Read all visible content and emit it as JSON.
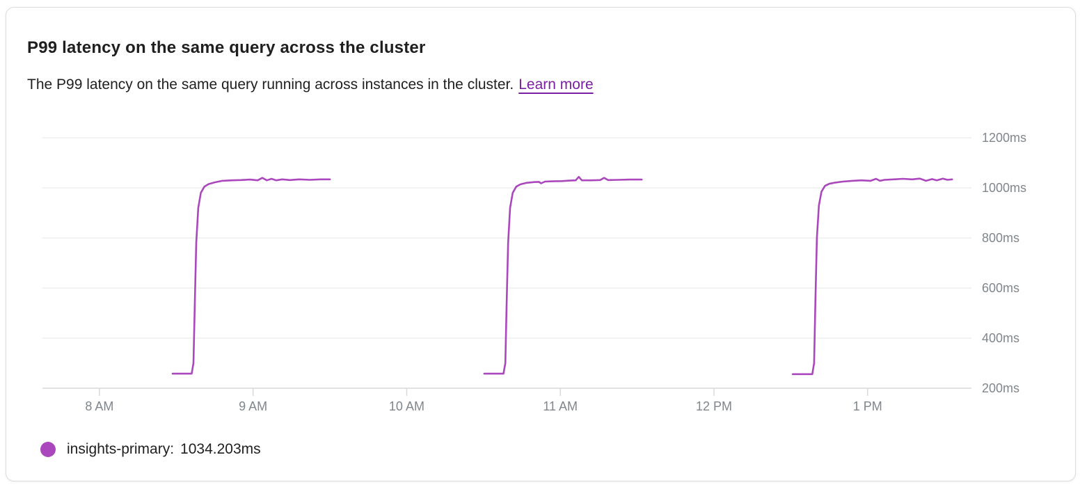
{
  "header": {
    "title": "P99 latency on the same query across the cluster",
    "description": "The P99 latency on the same query running across instances in the cluster.",
    "learn_more": "Learn more"
  },
  "legend": {
    "name_label": "insights-primary:",
    "value": "1034.203ms"
  },
  "theme": {
    "accent_line_color": "#ab47bc",
    "link_color": "#7b1fa2",
    "text_color": "#1f1f1f",
    "axis_label_color": "#80868b",
    "grid_color": "#ebebeb",
    "axis_color": "#d9d9d9",
    "card_border_color": "#dadce0",
    "card_background": "#ffffff"
  },
  "chart_data": {
    "type": "line",
    "title": "P99 latency on the same query across the cluster",
    "legend_position": "bottom-left",
    "grid": true,
    "x_axis": {
      "domain_hours": [
        7.629,
        13.676
      ],
      "ticks": [
        {
          "t": 8,
          "label": "8 AM"
        },
        {
          "t": 9,
          "label": "9 AM"
        },
        {
          "t": 10,
          "label": "10 AM"
        },
        {
          "t": 11,
          "label": "11 AM"
        },
        {
          "t": 12,
          "label": "12 PM"
        },
        {
          "t": 13,
          "label": "1 PM"
        }
      ]
    },
    "y_axis": {
      "unit": "ms",
      "domain": [
        200,
        1200
      ],
      "ticks": [
        200,
        400,
        600,
        800,
        1000,
        1200
      ]
    },
    "series": [
      {
        "name": "insights-primary",
        "color": "#ab47bc",
        "current_value_ms": 1034.203,
        "segments": [
          [
            [
              8.476,
              258
            ],
            [
              8.6,
              258
            ],
            [
              8.612,
              300
            ],
            [
              8.62,
              520
            ],
            [
              8.63,
              780
            ],
            [
              8.643,
              920
            ],
            [
              8.66,
              980
            ],
            [
              8.683,
              1005
            ],
            [
              8.71,
              1015
            ],
            [
              8.75,
              1022
            ],
            [
              8.8,
              1028
            ],
            [
              8.86,
              1030
            ],
            [
              8.92,
              1031
            ],
            [
              8.98,
              1033
            ],
            [
              9.03,
              1030
            ],
            [
              9.06,
              1040
            ],
            [
              9.09,
              1030
            ],
            [
              9.12,
              1036
            ],
            [
              9.15,
              1030
            ],
            [
              9.19,
              1034
            ],
            [
              9.24,
              1031
            ],
            [
              9.3,
              1034
            ],
            [
              9.37,
              1032
            ],
            [
              9.44,
              1034
            ],
            [
              9.5,
              1034
            ]
          ],
          [
            [
              10.505,
              258
            ],
            [
              10.63,
              258
            ],
            [
              10.642,
              300
            ],
            [
              10.65,
              520
            ],
            [
              10.66,
              780
            ],
            [
              10.673,
              920
            ],
            [
              10.69,
              980
            ],
            [
              10.713,
              1005
            ],
            [
              10.74,
              1014
            ],
            [
              10.78,
              1020
            ],
            [
              10.83,
              1023
            ],
            [
              10.86,
              1024
            ],
            [
              10.875,
              1018
            ],
            [
              10.9,
              1025
            ],
            [
              10.95,
              1026
            ],
            [
              11.01,
              1027
            ],
            [
              11.06,
              1029
            ],
            [
              11.1,
              1030
            ],
            [
              11.12,
              1044
            ],
            [
              11.14,
              1030
            ],
            [
              11.2,
              1030
            ],
            [
              11.26,
              1031
            ],
            [
              11.285,
              1040
            ],
            [
              11.31,
              1031
            ],
            [
              11.38,
              1032
            ],
            [
              11.45,
              1033
            ],
            [
              11.53,
              1033
            ]
          ],
          [
            [
              12.513,
              256
            ],
            [
              12.64,
              256
            ],
            [
              12.652,
              300
            ],
            [
              12.66,
              540
            ],
            [
              12.67,
              800
            ],
            [
              12.683,
              930
            ],
            [
              12.7,
              985
            ],
            [
              12.723,
              1008
            ],
            [
              12.75,
              1016
            ],
            [
              12.79,
              1021
            ],
            [
              12.84,
              1025
            ],
            [
              12.9,
              1028
            ],
            [
              12.96,
              1030
            ],
            [
              13.02,
              1028
            ],
            [
              13.055,
              1036
            ],
            [
              13.08,
              1028
            ],
            [
              13.11,
              1032
            ],
            [
              13.17,
              1034
            ],
            [
              13.23,
              1036
            ],
            [
              13.29,
              1034
            ],
            [
              13.34,
              1037
            ],
            [
              13.38,
              1028
            ],
            [
              13.42,
              1035
            ],
            [
              13.45,
              1030
            ],
            [
              13.49,
              1037
            ],
            [
              13.52,
              1032
            ],
            [
              13.55,
              1034
            ]
          ]
        ]
      }
    ]
  }
}
